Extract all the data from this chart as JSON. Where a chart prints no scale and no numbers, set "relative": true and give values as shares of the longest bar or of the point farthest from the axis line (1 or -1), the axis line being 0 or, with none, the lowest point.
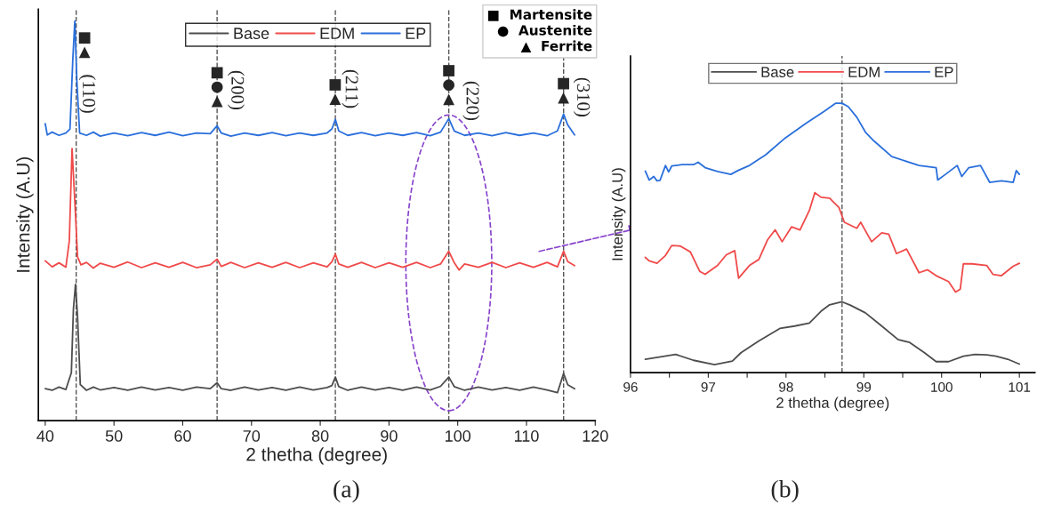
{
  "chart_data": [
    {
      "type": "line",
      "relative": true,
      "xlabel": "2 thetha (degree)",
      "ylabel": "Intensity (A.U)",
      "xlim": [
        39,
        120
      ],
      "xticks": [
        40,
        50,
        60,
        70,
        80,
        90,
        100,
        110,
        120
      ],
      "grid": false,
      "legend": "top",
      "series": [
        {
          "name": "Base",
          "color": "#4d4d4d",
          "x": [
            40,
            41,
            42,
            43,
            43.8,
            44.1,
            44.4,
            44.7,
            45.1,
            46,
            47,
            48,
            50,
            52,
            54,
            56,
            58,
            60,
            62,
            64,
            65,
            65.6,
            67,
            69,
            71,
            73,
            75,
            77,
            79,
            81,
            81.7,
            82.2,
            82.7,
            84,
            86,
            88,
            90,
            92,
            94,
            96,
            97.5,
            98.7,
            99.5,
            101,
            103,
            105,
            107,
            109,
            111,
            113,
            114.5,
            115.4,
            116,
            117
          ],
          "values": [
            0.08,
            0.076,
            0.084,
            0.078,
            0.12,
            0.28,
            0.341,
            0.26,
            0.09,
            0.076,
            0.084,
            0.077,
            0.083,
            0.076,
            0.084,
            0.077,
            0.083,
            0.076,
            0.084,
            0.08,
            0.095,
            0.08,
            0.076,
            0.084,
            0.077,
            0.083,
            0.076,
            0.084,
            0.077,
            0.083,
            0.088,
            0.109,
            0.085,
            0.076,
            0.084,
            0.077,
            0.083,
            0.076,
            0.084,
            0.077,
            0.086,
            0.109,
            0.085,
            0.076,
            0.084,
            0.077,
            0.083,
            0.076,
            0.084,
            0.077,
            0.07,
            0.118,
            0.09,
            0.08
          ]
        },
        {
          "name": "EDM",
          "color": "#f04a4a",
          "x": [
            40,
            41,
            42,
            43,
            43.5,
            43.9,
            44.3,
            44.7,
            45.2,
            46,
            47,
            48,
            50,
            52,
            54,
            56,
            58,
            60,
            62,
            64,
            65,
            65.6,
            67,
            69,
            71,
            73,
            75,
            77,
            79,
            81,
            81.7,
            82.2,
            82.7,
            84,
            86,
            88,
            90,
            92,
            94,
            96,
            97.5,
            98.7,
            99.5,
            100.2,
            101,
            103,
            105,
            107,
            109,
            111,
            113,
            114.5,
            115.4,
            116,
            117
          ],
          "values": [
            0.4,
            0.385,
            0.395,
            0.384,
            0.45,
            0.681,
            0.55,
            0.41,
            0.39,
            0.396,
            0.382,
            0.394,
            0.384,
            0.397,
            0.383,
            0.395,
            0.384,
            0.396,
            0.383,
            0.39,
            0.404,
            0.386,
            0.396,
            0.383,
            0.395,
            0.384,
            0.396,
            0.383,
            0.395,
            0.385,
            0.398,
            0.417,
            0.392,
            0.384,
            0.396,
            0.383,
            0.395,
            0.384,
            0.396,
            0.383,
            0.392,
            0.424,
            0.395,
            0.377,
            0.392,
            0.384,
            0.396,
            0.383,
            0.395,
            0.384,
            0.396,
            0.385,
            0.424,
            0.398,
            0.388
          ]
        },
        {
          "name": "EP",
          "color": "#2a6fdb",
          "x": [
            40,
            40.3,
            41,
            42,
            43,
            43.6,
            44,
            44.3,
            44.6,
            45,
            46,
            47,
            48,
            50,
            52,
            54,
            56,
            58,
            60,
            62,
            64,
            65,
            65.6,
            67,
            69,
            71,
            73,
            75,
            77,
            79,
            81,
            81.7,
            82.2,
            82.7,
            84,
            86,
            88,
            90,
            92,
            94,
            96,
            97.5,
            98.7,
            99.5,
            101,
            103,
            105,
            107,
            109,
            111,
            113,
            114.5,
            115.4,
            116,
            117
          ],
          "values": [
            0.743,
            0.715,
            0.722,
            0.714,
            0.72,
            0.73,
            0.9,
            1.0,
            0.85,
            0.72,
            0.714,
            0.722,
            0.712,
            0.72,
            0.713,
            0.721,
            0.714,
            0.722,
            0.713,
            0.72,
            0.718,
            0.738,
            0.72,
            0.712,
            0.72,
            0.714,
            0.721,
            0.713,
            0.72,
            0.714,
            0.72,
            0.73,
            0.754,
            0.725,
            0.714,
            0.721,
            0.713,
            0.72,
            0.714,
            0.721,
            0.713,
            0.722,
            0.756,
            0.725,
            0.714,
            0.72,
            0.713,
            0.721,
            0.714,
            0.72,
            0.713,
            0.725,
            0.767,
            0.74,
            0.715
          ]
        }
      ],
      "ref_lines": [
        {
          "axis": "x",
          "value": 44.5,
          "color": "#555555",
          "line_style": "dashed"
        },
        {
          "axis": "x",
          "value": 65,
          "color": "#555555",
          "line_style": "dashed"
        },
        {
          "axis": "x",
          "value": 82.2,
          "color": "#555555",
          "line_style": "dashed"
        },
        {
          "axis": "x",
          "value": 98.7,
          "color": "#555555",
          "line_style": "dashed"
        },
        {
          "axis": "x",
          "value": 115.4,
          "color": "#555555",
          "line_style": "dashed"
        }
      ],
      "annotations": [
        "■\n▲",
        "■\n●\n▲",
        "■\n▲",
        "■\n●\n▲",
        "■\n▲",
        "(110)",
        "(200)",
        "(211)",
        "(220)",
        "(310)",
        "■  Martensite\n●  Austenite\n▲  Ferrite",
        "(a)"
      ]
    },
    {
      "type": "line",
      "relative": true,
      "xlabel": "2 thetha (degree)",
      "ylabel": "Intensity (A.U)",
      "xlim": [
        96,
        101.2
      ],
      "xticks": [
        96,
        {
          "value": 96.5,
          "label": null
        },
        97,
        {
          "value": 97.5,
          "label": null
        },
        98,
        {
          "value": 98.5,
          "label": null
        },
        99,
        {
          "value": 99.5,
          "label": null
        },
        100,
        {
          "value": 100.5,
          "label": null
        },
        101
      ],
      "grid": false,
      "legend": "top",
      "series": [
        {
          "name": "Base",
          "color": "#4d4d4d",
          "x": [
            96.19,
            96.35,
            96.58,
            96.81,
            97.08,
            97.31,
            97.42,
            97.65,
            97.92,
            98.11,
            98.3,
            98.45,
            98.56,
            98.72,
            98.83,
            99.02,
            99.21,
            99.44,
            99.59,
            99.78,
            99.93,
            100.09,
            100.28,
            100.43,
            100.58,
            100.7,
            100.85,
            101.0
          ],
          "values": [
            0.05,
            0.057,
            0.068,
            0.046,
            0.03,
            0.043,
            0.074,
            0.118,
            0.164,
            0.173,
            0.184,
            0.228,
            0.252,
            0.263,
            0.25,
            0.222,
            0.178,
            0.123,
            0.112,
            0.074,
            0.041,
            0.041,
            0.061,
            0.068,
            0.066,
            0.061,
            0.05,
            0.032
          ]
        },
        {
          "name": "EDM",
          "color": "#f04a4a",
          "x": [
            96.19,
            96.24,
            96.34,
            96.45,
            96.53,
            96.64,
            96.77,
            96.89,
            96.96,
            97.12,
            97.23,
            97.34,
            97.39,
            97.53,
            97.65,
            97.76,
            97.86,
            97.95,
            98.07,
            98.18,
            98.3,
            98.37,
            98.45,
            98.56,
            98.68,
            98.75,
            98.91,
            98.96,
            99.1,
            99.23,
            99.32,
            99.42,
            99.55,
            99.71,
            99.82,
            99.93,
            100.09,
            100.18,
            100.24,
            100.28,
            100.39,
            100.58,
            100.66,
            100.77,
            100.92,
            101.0
          ],
          "values": [
            0.428,
            0.415,
            0.406,
            0.435,
            0.472,
            0.47,
            0.448,
            0.376,
            0.365,
            0.398,
            0.437,
            0.453,
            0.351,
            0.398,
            0.42,
            0.492,
            0.53,
            0.486,
            0.541,
            0.53,
            0.602,
            0.668,
            0.651,
            0.648,
            0.613,
            0.558,
            0.536,
            0.558,
            0.486,
            0.519,
            0.514,
            0.442,
            0.459,
            0.371,
            0.382,
            0.36,
            0.338,
            0.299,
            0.31,
            0.404,
            0.404,
            0.398,
            0.365,
            0.36,
            0.395,
            0.406
          ]
        },
        {
          "name": "EP",
          "color": "#2a6fdb",
          "x": [
            96.19,
            96.24,
            96.3,
            96.34,
            96.38,
            96.45,
            96.49,
            96.53,
            96.66,
            96.81,
            96.87,
            96.96,
            97.12,
            97.29,
            97.38,
            97.53,
            97.74,
            97.99,
            98.26,
            98.49,
            98.64,
            98.72,
            98.8,
            98.91,
            99.02,
            99.13,
            99.36,
            99.71,
            99.93,
            99.95,
            100.05,
            100.2,
            100.26,
            100.35,
            100.5,
            100.62,
            100.77,
            100.92,
            100.96,
            101.0
          ],
          "values": [
            0.748,
            0.715,
            0.728,
            0.712,
            0.714,
            0.769,
            0.745,
            0.767,
            0.772,
            0.772,
            0.781,
            0.761,
            0.747,
            0.736,
            0.75,
            0.769,
            0.809,
            0.871,
            0.926,
            0.97,
            1.0,
            1.0,
            0.987,
            0.948,
            0.893,
            0.86,
            0.802,
            0.769,
            0.761,
            0.715,
            0.736,
            0.769,
            0.728,
            0.761,
            0.769,
            0.706,
            0.712,
            0.706,
            0.75,
            0.736
          ]
        }
      ],
      "ref_lines": [
        {
          "axis": "x",
          "value": 98.72,
          "color": "#555555",
          "line_style": "dashed"
        }
      ],
      "annotations": [
        "(b)"
      ]
    }
  ]
}
